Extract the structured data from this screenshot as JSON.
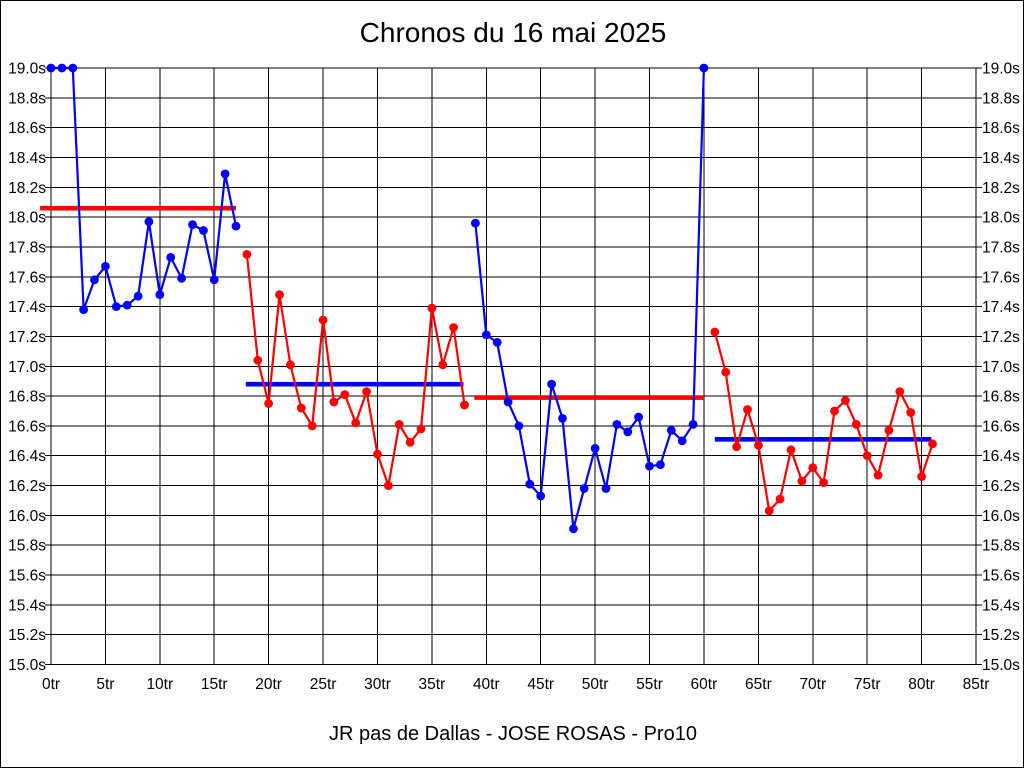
{
  "title": "Chronos du 16 mai 2025",
  "caption": "JR pas de Dallas - JOSE ROSAS - Pro10",
  "chart_data": {
    "type": "line",
    "title": "Chronos du 16 mai 2025",
    "caption": "JR pas de Dallas - JOSE ROSAS - Pro10",
    "x_unit": "tr",
    "y_unit": "s",
    "xlim": [
      0,
      85
    ],
    "ylim": [
      15.0,
      19.0
    ],
    "x_tick_step": 5,
    "y_tick_step": 0.2,
    "grid": true,
    "legend": "none",
    "x_tick_labels": [
      "0tr",
      "5tr",
      "10tr",
      "15tr",
      "20tr",
      "25tr",
      "30tr",
      "35tr",
      "40tr",
      "45tr",
      "50tr",
      "55tr",
      "60tr",
      "65tr",
      "70tr",
      "75tr",
      "80tr",
      "85tr"
    ],
    "y_tick_labels": [
      "19.0s",
      "18.8s",
      "18.6s",
      "18.4s",
      "18.2s",
      "18.0s",
      "17.8s",
      "17.6s",
      "17.4s",
      "17.2s",
      "17.0s",
      "16.8s",
      "16.6s",
      "16.4s",
      "16.2s",
      "16.0s",
      "15.8s",
      "15.6s",
      "15.4s",
      "15.2s",
      "15.0s"
    ],
    "colors": {
      "blue_series": "#0000ff",
      "red_series": "#ff0000",
      "grid": "#000000",
      "background": "#ffffff"
    },
    "segments": [
      {
        "name": "segment-1",
        "color": "blue",
        "start_trial": 0,
        "values": [
          19.0,
          19.0,
          19.0,
          17.38,
          17.58,
          17.67,
          17.4,
          17.41,
          17.47,
          17.97,
          17.48,
          17.73,
          17.59,
          17.95,
          17.91,
          17.58,
          18.29,
          17.94
        ]
      },
      {
        "name": "segment-2",
        "color": "red",
        "start_trial": 18,
        "values": [
          17.75,
          17.04,
          16.75,
          17.48,
          17.01,
          16.72,
          16.6,
          17.31,
          16.76,
          16.81,
          16.62,
          16.83,
          16.41,
          16.2,
          16.61,
          16.49,
          16.58,
          17.39,
          17.01,
          17.26,
          16.74
        ]
      },
      {
        "name": "segment-3",
        "color": "blue",
        "start_trial": 39,
        "values": [
          17.96,
          17.21,
          17.16,
          16.76,
          16.6,
          16.21,
          16.13,
          16.88,
          16.65,
          15.91,
          16.18,
          16.45,
          16.18,
          16.61,
          16.56,
          16.66,
          16.33,
          16.34,
          16.57,
          16.5,
          16.61,
          19.0
        ]
      },
      {
        "name": "segment-4",
        "color": "red",
        "start_trial": 61,
        "values": [
          17.23,
          16.96,
          16.46,
          16.71,
          16.47,
          16.03,
          16.11,
          16.44,
          16.23,
          16.32,
          16.22,
          16.7,
          16.77,
          16.61,
          16.4,
          16.27,
          16.57,
          16.83,
          16.69,
          16.26,
          16.48
        ]
      }
    ],
    "mean_lines": [
      {
        "name": "mean-line-1",
        "color": "red",
        "value": 18.06,
        "x_start": -1.0,
        "x_end": 17.0
      },
      {
        "name": "mean-line-2",
        "color": "blue",
        "value": 16.88,
        "x_start": 17.9,
        "x_end": 37.9
      },
      {
        "name": "mean-line-3",
        "color": "red",
        "value": 16.79,
        "x_start": 38.9,
        "x_end": 60.0
      },
      {
        "name": "mean-line-4",
        "color": "blue",
        "value": 16.51,
        "x_start": 61.0,
        "x_end": 80.9
      }
    ]
  }
}
